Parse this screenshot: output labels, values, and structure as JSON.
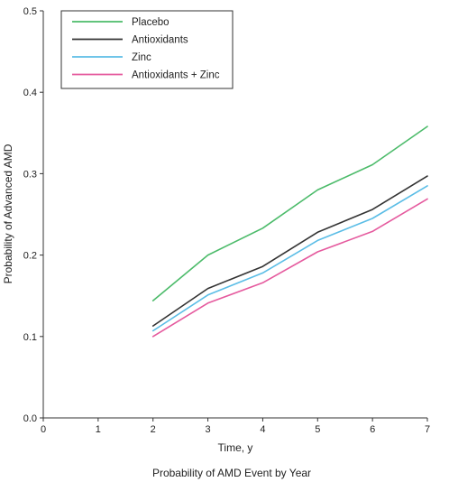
{
  "chart_data": {
    "type": "line",
    "title": "",
    "caption": "Probability of AMD Event by Year",
    "xlabel": "Time, y",
    "ylabel": "Probability of Advanced AMD",
    "xlim": [
      0,
      7
    ],
    "ylim": [
      0,
      0.5
    ],
    "x_ticks": [
      "0",
      "1",
      "2",
      "3",
      "4",
      "5",
      "6",
      "7"
    ],
    "y_ticks": [
      "0.0",
      "0.1",
      "0.2",
      "0.3",
      "0.4",
      "0.5"
    ],
    "grid": false,
    "legend_position": "top-left",
    "x": [
      2,
      3,
      4,
      5,
      6,
      7
    ],
    "series": [
      {
        "name": "Placebo",
        "color": "#4cbb6a",
        "values": [
          0.144,
          0.2,
          0.233,
          0.28,
          0.311,
          0.358
        ]
      },
      {
        "name": "Antioxidants",
        "color": "#333333",
        "values": [
          0.113,
          0.159,
          0.186,
          0.228,
          0.256,
          0.297
        ]
      },
      {
        "name": "Zinc",
        "color": "#5bbde6",
        "values": [
          0.107,
          0.151,
          0.178,
          0.218,
          0.245,
          0.285
        ]
      },
      {
        "name": "Antioxidants + Zinc",
        "color": "#e55a9e",
        "values": [
          0.1,
          0.141,
          0.166,
          0.204,
          0.229,
          0.269
        ]
      }
    ]
  }
}
